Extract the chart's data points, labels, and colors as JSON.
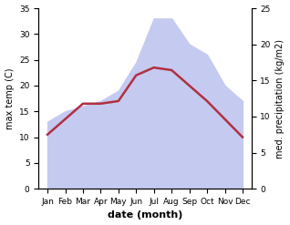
{
  "months": [
    "Jan",
    "Feb",
    "Mar",
    "Apr",
    "May",
    "Jun",
    "Jul",
    "Aug",
    "Sep",
    "Oct",
    "Nov",
    "Dec"
  ],
  "max_temp": [
    10.5,
    13.5,
    16.5,
    16.5,
    17.0,
    22.0,
    23.5,
    23.0,
    20.0,
    17.0,
    13.5,
    10.0
  ],
  "precipitation": [
    13.0,
    15.0,
    16.0,
    17.0,
    19.0,
    24.5,
    33.0,
    33.0,
    28.0,
    26.0,
    20.0,
    17.0
  ],
  "temp_color": "#b03040",
  "precip_fill_color": "#c5caf0",
  "ylabel_left": "max temp (C)",
  "ylabel_right": "med. precipitation (kg/m2)",
  "xlabel": "date (month)",
  "ylim_left": [
    0,
    35
  ],
  "ylim_right": [
    0,
    25
  ],
  "yticks_left": [
    0,
    5,
    10,
    15,
    20,
    25,
    30,
    35
  ],
  "yticks_right": [
    0,
    5,
    10,
    15,
    20,
    25
  ],
  "background_color": "#ffffff"
}
